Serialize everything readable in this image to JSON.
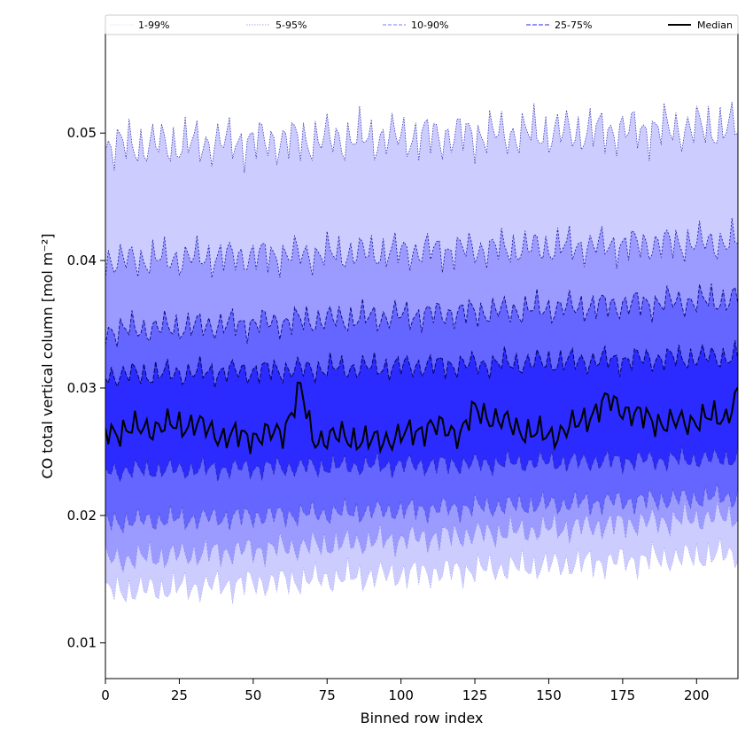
{
  "chart_data": {
    "type": "area",
    "xlabel": "Binned row index",
    "ylabel": "CO total vertical column [mol m⁻²]",
    "xlim": [
      0,
      214
    ],
    "ylim": [
      0.0072,
      0.0578
    ],
    "x_ticks": [
      0,
      25,
      50,
      75,
      100,
      125,
      150,
      175,
      200
    ],
    "y_ticks": [
      0.01,
      0.02,
      0.03,
      0.04,
      0.05
    ],
    "legend": {
      "position": "top",
      "entries": [
        {
          "label": "1-99%",
          "style": "dotted",
          "color": "#ccccff"
        },
        {
          "label": "5-95%",
          "style": "dotted",
          "color": "#8888ff"
        },
        {
          "label": "10-90%",
          "style": "dashed",
          "color": "#7a7aff"
        },
        {
          "label": "25-75%",
          "style": "dashed",
          "color": "#5555ee"
        },
        {
          "label": "Median",
          "style": "solid",
          "color": "#000000"
        }
      ]
    },
    "colors": {
      "band_1_99": "#ccccff",
      "band_5_95": "#9a9aff",
      "band_10_90": "#6565ff",
      "band_25_75": "#2b2bff",
      "median": "#000000"
    },
    "series": [
      {
        "name": "Median",
        "x": [
          0,
          10,
          20,
          30,
          40,
          50,
          60,
          66,
          70,
          80,
          90,
          100,
          110,
          120,
          125,
          130,
          140,
          150,
          160,
          170,
          180,
          190,
          200,
          210,
          214
        ],
        "values": [
          0.0265,
          0.0268,
          0.027,
          0.0272,
          0.0262,
          0.0262,
          0.0265,
          0.03,
          0.026,
          0.0262,
          0.0258,
          0.0262,
          0.027,
          0.0265,
          0.0282,
          0.0278,
          0.0268,
          0.0262,
          0.0272,
          0.029,
          0.0278,
          0.0272,
          0.0275,
          0.0278,
          0.0295
        ]
      },
      {
        "name": "25%",
        "x": [
          0,
          214
        ],
        "values": [
          0.0235,
          0.0245
        ]
      },
      {
        "name": "75%",
        "x": [
          0,
          214
        ],
        "values": [
          0.031,
          0.0325
        ]
      },
      {
        "name": "10%",
        "x": [
          0,
          214
        ],
        "values": [
          0.0195,
          0.0215
        ]
      },
      {
        "name": "90%",
        "x": [
          0,
          214
        ],
        "values": [
          0.0345,
          0.037
        ]
      },
      {
        "name": "5%",
        "x": [
          0,
          214
        ],
        "values": [
          0.0165,
          0.02
        ]
      },
      {
        "name": "95%",
        "x": [
          0,
          214
        ],
        "values": [
          0.04,
          0.0415
        ]
      },
      {
        "name": "1%",
        "x": [
          0,
          214
        ],
        "values": [
          0.014,
          0.017
        ]
      },
      {
        "name": "99%",
        "x": [
          0,
          214
        ],
        "values": [
          0.049,
          0.0505
        ]
      }
    ]
  }
}
